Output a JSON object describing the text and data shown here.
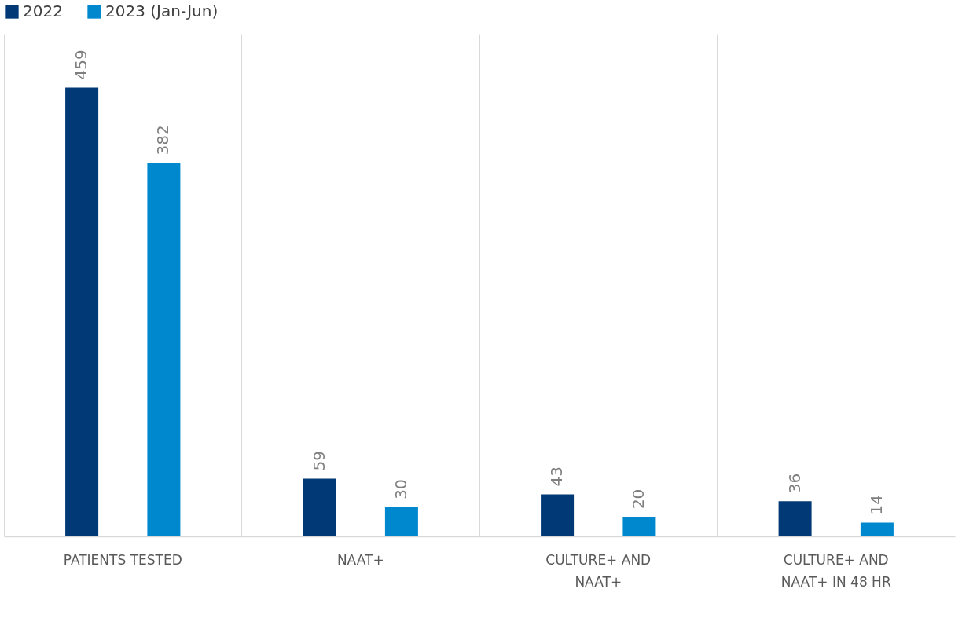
{
  "chart_data": {
    "type": "bar",
    "categories": [
      "PATIENTS TESTED",
      "NAAT+",
      "CULTURE+ AND NAAT+",
      "CULTURE+ AND NAAT+ IN 48 HR"
    ],
    "series": [
      {
        "name": "2022",
        "color": "#003976",
        "values": [
          459,
          59,
          43,
          36
        ]
      },
      {
        "name": "2023 (Jan-Jun)",
        "color": "#0088cf",
        "values": [
          382,
          30,
          20,
          14
        ]
      }
    ],
    "data_labels": true,
    "grid": "x",
    "legend": "top",
    "tick_labels": "x"
  }
}
